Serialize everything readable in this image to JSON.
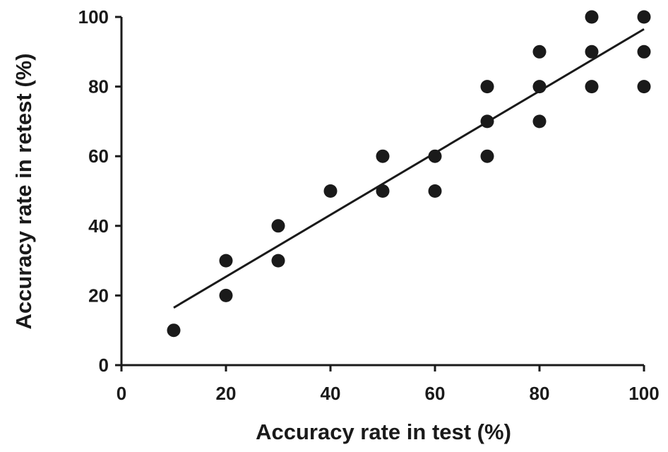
{
  "chart_data": {
    "type": "scatter",
    "title": "",
    "xlabel": "Accuracy rate in test (%)",
    "ylabel": "Accuracy rate in retest (%)",
    "xlim": [
      0,
      100
    ],
    "ylim": [
      0,
      100
    ],
    "xticks": [
      0,
      20,
      40,
      60,
      80,
      100
    ],
    "yticks": [
      0,
      20,
      40,
      60,
      80,
      100
    ],
    "xtick_labels": [
      "0",
      "20",
      "40",
      "60",
      "80",
      "100"
    ],
    "ytick_labels": [
      "0",
      "20",
      "40",
      "60",
      "80",
      "100"
    ],
    "grid": false,
    "legend": "none",
    "colors": {
      "points": "#1a1a1a",
      "axes": "#1a1a1a",
      "fit_line": "#1a1a1a"
    },
    "series": [
      {
        "x": [
          10,
          20,
          20,
          30,
          30,
          40,
          50,
          50,
          60,
          60,
          70,
          70,
          70,
          80,
          80,
          80,
          90,
          90,
          90,
          100,
          100,
          100
        ],
        "y": [
          10,
          20,
          30,
          30,
          40,
          50,
          50,
          60,
          50,
          60,
          60,
          70,
          80,
          70,
          80,
          90,
          80,
          90,
          100,
          80,
          90,
          100
        ]
      }
    ],
    "fit_line": {
      "x": [
        10,
        100
      ],
      "y": [
        16.5,
        96.5
      ]
    }
  }
}
